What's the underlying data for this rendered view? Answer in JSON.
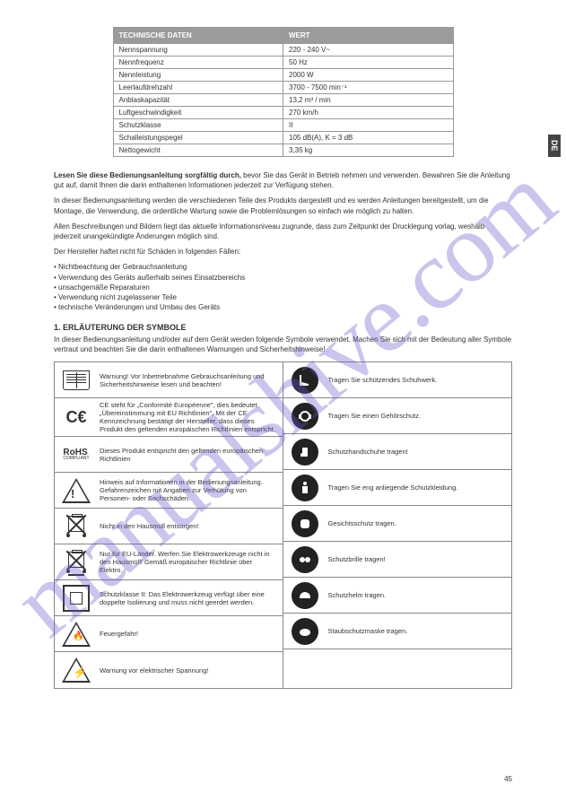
{
  "watermark": "manualshive.com",
  "lang_tab": "DE",
  "page_number": "45",
  "spec_table": {
    "header": {
      "col1": "TECHNISCHE DATEN",
      "col2": "WERT"
    },
    "rows": [
      {
        "col1": "Nennspannung",
        "col2": "220 - 240 V~"
      },
      {
        "col1": "Nennfrequenz",
        "col2": "50 Hz"
      },
      {
        "col1": "Nennleistung",
        "col2": "2000 W"
      },
      {
        "col1": "Leerlaufdrehzahl",
        "col2": "3700 - 7500 min⁻¹"
      },
      {
        "col1": "Anblaskapazität",
        "col2": "13,2 m³ / min"
      },
      {
        "col1": "Luftgeschwindigkeit",
        "col2": "270 km/h"
      },
      {
        "col1": "Schutzklasse",
        "col2": "II"
      },
      {
        "col1": "Schalleistungspegel",
        "col2": "105 dB(A), K = 3 dB"
      },
      {
        "col1": "Nettogewicht",
        "col2": "3,35 kg"
      }
    ]
  },
  "intro": {
    "p1_bold": "Lesen Sie diese Bedienungsanleitung sorgfältig durch,",
    "p1_rest": " bevor Sie das Gerät in Betrieb nehmen und verwenden. Bewahren Sie die Anleitung gut auf, damit Ihnen die darin enthaltenen Informationen jederzeit zur Verfügung stehen.",
    "p2": "In dieser Bedienungsanleitung werden die verschiedenen Teile des Produkts dargestellt und es werden Anleitungen bereitgestellt, um die Montage, die Verwendung, die ordentliche Wartung sowie die Problemlösungen so einfach wie möglich zu halten.",
    "p3": "Allen Beschreibungen und Bildern liegt das aktuelle Informationsniveau zugrunde, dass zum Zeitpunkt der Drucklegung vorlag, weshalb jederzeit unangekündigte Änderungen möglich sind.",
    "p4": "Der Hersteller haftet nicht für Schäden in folgenden Fällen:",
    "bullets": [
      "Nichtbeachtung der Gebrauchsanleitung",
      "Verwendung des Geräts außerhalb seines Einsatzbereichs",
      "unsachgemäße Reparaturen",
      "Verwendung nicht zugelassener Teile",
      "technische Veränderungen und Umbau des Geräts"
    ]
  },
  "section_title": "1. ERLÄUTERUNG DER SYMBOLE",
  "section_intro": "In dieser Bedienungsanleitung und/oder auf dem Gerät werden folgende Symbole verwendet. Machen Sie sich mit der Bedeutung aller Symbole vertraut und beachten Sie die darin enthaltenen Warnungen und Sicherheitshinweise!",
  "symbols": {
    "left": [
      {
        "icon": "book",
        "text": "Warnung! Vor Inbetriebnahme Gebrauchsanleitung und Sicherheitshinweise lesen und beachten!"
      },
      {
        "icon": "ce",
        "text": "CE steht für „Conformité Européenne\", dies bedeutet „Übereinstimmung mit EU Richtlinien\". Mit der CE Kennzeichnung bestätigt der Hersteller, dass dieses Produkt den geltenden europäischen Richtlinien entspricht."
      },
      {
        "icon": "rohs",
        "text": "Dieses Produkt entspricht den geltenden europäischen Richtlinien"
      },
      {
        "icon": "warn",
        "text": "Hinweis auf Informationen in der Bedienungsanleitung. Gefahrenzeichen mit Angaben zur Verhütung von Personen- oder Sachschäden."
      },
      {
        "icon": "weee",
        "text": "Nicht in den Hausmüll entsorgen!"
      },
      {
        "icon": "weee-bar",
        "text": "Nur für EU-Länder. Werfen Sie Elektrowerkzeuge nicht in den Hausmüll! Gemäß europäischer Richtlinie über Elektro."
      },
      {
        "icon": "class2",
        "text": "Schutzklasse II: Das Elektrowerkzeug verfügt über eine doppelte Isolierung und muss nicht geerdet werden."
      },
      {
        "icon": "fire",
        "text": "Feuergefahr!"
      },
      {
        "icon": "bolt",
        "text": "Warnung vor elektrischer Spannung!"
      }
    ],
    "right": [
      {
        "icon": "boots",
        "text": "Tragen Sie schützendes Schuhwerk."
      },
      {
        "icon": "ears",
        "text": "Tragen Sie einen Gehörschutz."
      },
      {
        "icon": "gloves",
        "text": "Schutzhandschuhe tragen!"
      },
      {
        "icon": "body",
        "text": "Tragen Sie eng anliegende Schutzkleidung."
      },
      {
        "icon": "face",
        "text": "Gesichtsschutz tragen."
      },
      {
        "icon": "goggles",
        "text": "Schutzbrille tragen!"
      },
      {
        "icon": "helmet",
        "text": "Schutzhelm tragen."
      },
      {
        "icon": "mask",
        "text": "Staubschutzmaske tragen."
      },
      {
        "icon": "blank",
        "text": ""
      }
    ]
  }
}
